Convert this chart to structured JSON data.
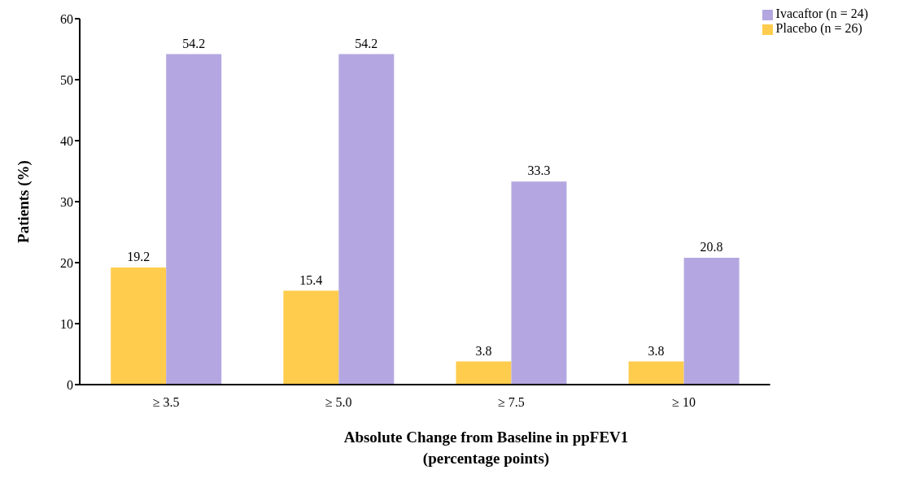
{
  "chart_data": {
    "type": "bar",
    "xlabel": "Absolute Change from Baseline in ppFEV1\n(percentage points)",
    "ylabel": "Patients (%)",
    "categories": [
      "≥ 3.5",
      "≥ 5.0",
      "≥ 7.5",
      "≥ 10"
    ],
    "series": [
      {
        "name": "Placebo (n = 26)",
        "color": "#ffcc4d",
        "values": [
          19.2,
          15.4,
          3.8,
          3.8
        ]
      },
      {
        "name": "Ivacaftor (n = 24)",
        "color": "#b4a7e1",
        "values": [
          54.2,
          54.2,
          33.3,
          20.8
        ]
      }
    ],
    "ylim": [
      0,
      60
    ],
    "yticks": [
      0,
      10,
      20,
      30,
      40,
      50,
      60
    ],
    "grid": false,
    "legend": "top right",
    "data_labels": true
  }
}
